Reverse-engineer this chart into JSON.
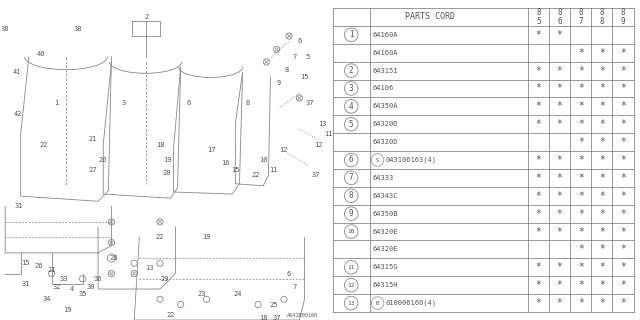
{
  "footer": "A641B00160",
  "table_header": "PARTS CORD",
  "years": [
    "85",
    "86",
    "87",
    "88",
    "89"
  ],
  "rows": [
    {
      "num": "1",
      "part": "64160A",
      "marks": [
        1,
        1,
        0,
        0,
        0
      ]
    },
    {
      "num": "",
      "part": "64160A",
      "marks": [
        0,
        0,
        1,
        1,
        1
      ]
    },
    {
      "num": "2",
      "part": "64315I",
      "marks": [
        1,
        1,
        1,
        1,
        1
      ]
    },
    {
      "num": "3",
      "part": "64106",
      "marks": [
        1,
        1,
        1,
        1,
        1
      ]
    },
    {
      "num": "4",
      "part": "64350A",
      "marks": [
        1,
        1,
        1,
        1,
        1
      ]
    },
    {
      "num": "5",
      "part": "64320D",
      "marks": [
        1,
        1,
        1,
        1,
        1
      ]
    },
    {
      "num": "",
      "part": "64320D",
      "marks": [
        0,
        0,
        1,
        1,
        1
      ]
    },
    {
      "num": "6",
      "part": "S043106163(4)",
      "marks": [
        1,
        1,
        1,
        1,
        1
      ]
    },
    {
      "num": "7",
      "part": "64333",
      "marks": [
        1,
        1,
        1,
        1,
        1
      ]
    },
    {
      "num": "8",
      "part": "64343C",
      "marks": [
        1,
        1,
        1,
        1,
        1
      ]
    },
    {
      "num": "9",
      "part": "64350B",
      "marks": [
        1,
        1,
        1,
        1,
        1
      ]
    },
    {
      "num": "10",
      "part": "64320E",
      "marks": [
        1,
        1,
        1,
        1,
        1
      ]
    },
    {
      "num": "",
      "part": "64320E",
      "marks": [
        0,
        0,
        1,
        1,
        1
      ]
    },
    {
      "num": "11",
      "part": "64315G",
      "marks": [
        1,
        1,
        1,
        1,
        1
      ]
    },
    {
      "num": "12",
      "part": "64315H",
      "marks": [
        1,
        1,
        1,
        1,
        1
      ]
    },
    {
      "num": "13",
      "part": "B010006160(4)",
      "marks": [
        1,
        1,
        1,
        1,
        1
      ]
    }
  ],
  "bg_color": "#ffffff",
  "lc": "#888888",
  "tc": "#555555"
}
